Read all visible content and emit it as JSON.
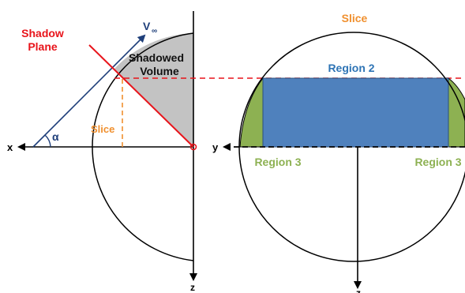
{
  "left_view": {
    "shadow_plane_label_line1": "Shadow",
    "shadow_plane_label_line2": "Plane",
    "freestream_label": "V",
    "freestream_subscript": "∞",
    "shadowed_volume_line1": "Shadowed",
    "shadowed_volume_line2": "Volume",
    "angle_label": "α",
    "slice_label": "Slice",
    "x_axis_label": "x",
    "z_axis_label": "z"
  },
  "right_view": {
    "title": "Slice",
    "region2_label": "Region 2",
    "region3_left_label": "Region 3",
    "region3_right_label": "Region 3",
    "y_axis_label": "y",
    "z_axis_label": "z"
  },
  "colors": {
    "shadow_plane": "#e8141b",
    "freestream": "#1f3f7a",
    "slice": "#f0902f",
    "shadow_fill": "#c3c3c3",
    "region2_fill": "#4f81bd",
    "region2_text": "#2e74b5",
    "region3_fill": "#8db152",
    "region3_text": "#8db152",
    "axis": "#000000"
  }
}
